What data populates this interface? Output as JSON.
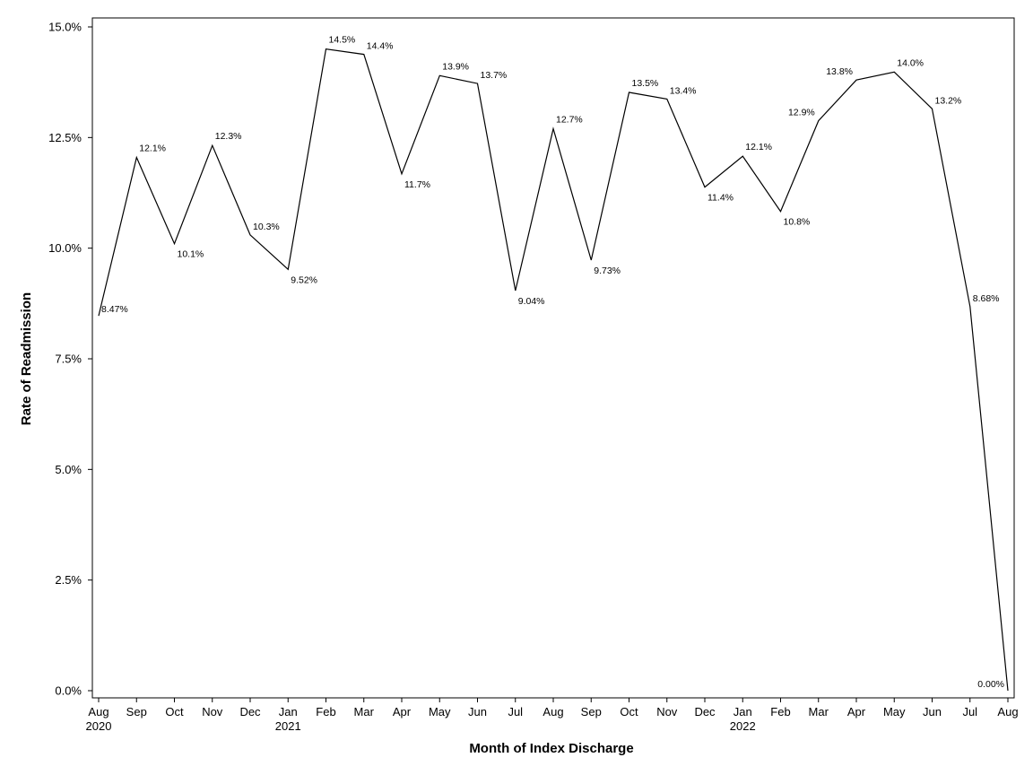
{
  "chart_data": {
    "type": "line",
    "title": "",
    "xlabel": "Month of Index Discharge",
    "ylabel": "Rate of Readmission",
    "ylim": [
      0,
      15
    ],
    "yticks": [
      {
        "value": 0,
        "label": "0.0%"
      },
      {
        "value": 2.5,
        "label": "2.5%"
      },
      {
        "value": 5,
        "label": "5.0%"
      },
      {
        "value": 7.5,
        "label": "7.5%"
      },
      {
        "value": 10,
        "label": "10.0%"
      },
      {
        "value": 12.5,
        "label": "12.5%"
      },
      {
        "value": 15,
        "label": "15.0%"
      }
    ],
    "categories": [
      "Aug",
      "Sep",
      "Oct",
      "Nov",
      "Dec",
      "Jan",
      "Feb",
      "Mar",
      "Apr",
      "May",
      "Jun",
      "Jul",
      "Aug",
      "Sep",
      "Oct",
      "Nov",
      "Dec",
      "Jan",
      "Feb",
      "Mar",
      "Apr",
      "May",
      "Jun",
      "Jul",
      "Aug"
    ],
    "year_labels": [
      {
        "index": 0,
        "label": "2020"
      },
      {
        "index": 5,
        "label": "2021"
      },
      {
        "index": 17,
        "label": "2022"
      }
    ],
    "series": [
      {
        "name": "Rate of Readmission",
        "values": [
          8.47,
          12.05,
          10.1,
          12.32,
          10.3,
          9.52,
          14.5,
          14.38,
          11.68,
          13.9,
          13.72,
          9.04,
          12.7,
          9.73,
          13.52,
          13.37,
          11.38,
          12.08,
          10.83,
          12.88,
          13.8,
          13.98,
          13.15,
          8.68,
          0.0
        ],
        "labels": [
          "8.47%",
          "12.1%",
          "10.1%",
          "12.3%",
          "10.3%",
          "9.52%",
          "14.5%",
          "14.4%",
          "11.7%",
          "13.9%",
          "13.7%",
          "9.04%",
          "12.7%",
          "9.73%",
          "13.5%",
          "13.4%",
          "11.4%",
          "12.1%",
          "10.8%",
          "12.9%",
          "13.8%",
          "14.0%",
          "13.2%",
          "8.68%",
          "0.00%"
        ]
      }
    ]
  }
}
